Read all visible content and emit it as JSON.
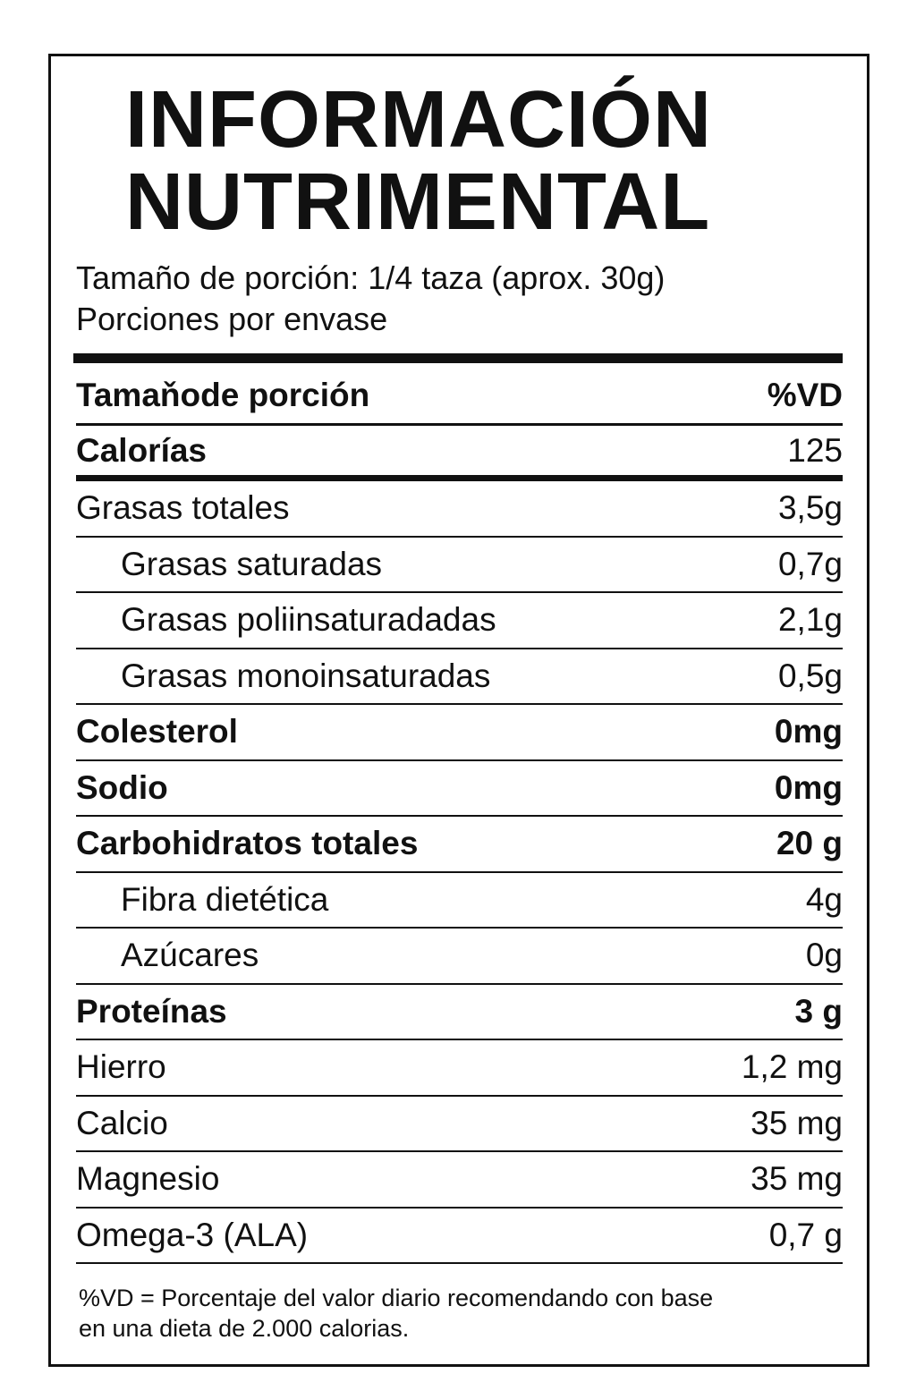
{
  "title": {
    "line1": "INFORMACIÓN",
    "line2": "NUTRIMENTAL"
  },
  "serving": {
    "size": "Tamaño de porción: 1/4 taza (aprox. 30g)",
    "per_container": "Porciones por envase"
  },
  "header": {
    "label": "Tamaňode porción",
    "value": "%VD"
  },
  "calories": {
    "label": "Calorías",
    "value": "125"
  },
  "nutrients": [
    {
      "label": "Grasas totales",
      "value": "3,5g",
      "bold": false,
      "sub": false
    },
    {
      "label": "Grasas saturadas",
      "value": "0,7g",
      "bold": false,
      "sub": true
    },
    {
      "label": "Grasas poliinsaturadadas",
      "value": "2,1g",
      "bold": false,
      "sub": true
    },
    {
      "label": "Grasas monoinsaturadas",
      "value": "0,5g",
      "bold": false,
      "sub": true
    },
    {
      "label": "Colesterol",
      "value": "0mg",
      "bold": true,
      "sub": false
    },
    {
      "label": "Sodio",
      "value": "0mg",
      "bold": true,
      "sub": false
    },
    {
      "label": "Carbohidratos totales",
      "value": "20 g",
      "bold": true,
      "sub": false
    },
    {
      "label": "Fibra dietética",
      "value": "4g",
      "bold": false,
      "sub": true
    },
    {
      "label": "Azúcares",
      "value": "0g",
      "bold": false,
      "sub": true
    },
    {
      "label": "Proteínas",
      "value": "3 g",
      "bold": true,
      "sub": false
    },
    {
      "label": "Hierro",
      "value": "1,2 mg",
      "bold": false,
      "sub": false
    },
    {
      "label": "Calcio",
      "value": "35 mg",
      "bold": false,
      "sub": false
    },
    {
      "label": "Magnesio",
      "value": "35 mg",
      "bold": false,
      "sub": false
    },
    {
      "label": "Omega-3 (ALA)",
      "value": "0,7 g",
      "bold": false,
      "sub": false
    }
  ],
  "footer": {
    "line1": "%VD = Porcentaje del valor diario recomendando con base",
    "line2": "en una dieta de 2.000 calorias."
  }
}
